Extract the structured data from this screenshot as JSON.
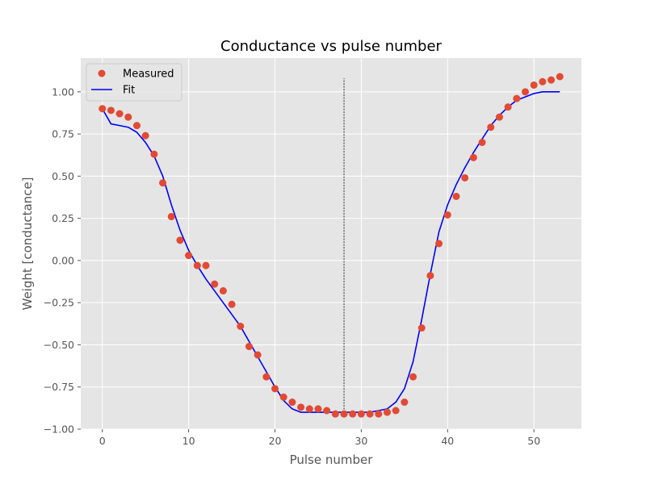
{
  "chart_data": {
    "type": "scatter",
    "title": "Conductance vs pulse number",
    "xlabel": "Pulse number",
    "ylabel": "Weight [conductance]",
    "xlim": [
      -2.5,
      55.5
    ],
    "ylim": [
      -1.0,
      1.2
    ],
    "xticks": [
      0,
      10,
      20,
      30,
      40,
      50
    ],
    "yticks": [
      -1.0,
      -0.75,
      -0.5,
      -0.25,
      0.0,
      0.25,
      0.5,
      0.75,
      1.0
    ],
    "xtick_labels": [
      "0",
      "10",
      "20",
      "30",
      "40",
      "50"
    ],
    "ytick_labels": [
      "−1.00",
      "−0.75",
      "−0.50",
      "−0.25",
      "0.00",
      "0.25",
      "0.50",
      "0.75",
      "1.00"
    ],
    "grid": true,
    "legend_position": "top-left",
    "background_color": "#e5e5e5",
    "vline": {
      "x": 28,
      "y_range": [
        -0.9,
        1.08
      ],
      "color": "#000000",
      "style": "dashed"
    },
    "series": [
      {
        "name": "Measured",
        "kind": "scatter",
        "color": "#e24a33",
        "x": [
          0,
          1,
          2,
          3,
          4,
          5,
          6,
          7,
          8,
          9,
          10,
          11,
          12,
          13,
          14,
          15,
          16,
          17,
          18,
          19,
          20,
          21,
          22,
          23,
          24,
          25,
          26,
          27,
          28,
          29,
          30,
          31,
          32,
          33,
          34,
          35,
          36,
          37,
          38,
          39,
          40,
          41,
          42,
          43,
          44,
          45,
          46,
          47,
          48,
          49,
          50,
          51,
          52,
          53
        ],
        "y": [
          0.9,
          0.89,
          0.87,
          0.85,
          0.8,
          0.74,
          0.63,
          0.46,
          0.26,
          0.12,
          0.03,
          -0.03,
          -0.03,
          -0.14,
          -0.18,
          -0.26,
          -0.39,
          -0.51,
          -0.56,
          -0.69,
          -0.76,
          -0.81,
          -0.84,
          -0.87,
          -0.88,
          -0.88,
          -0.89,
          -0.91,
          -0.91,
          -0.91,
          -0.91,
          -0.91,
          -0.91,
          -0.9,
          -0.89,
          -0.84,
          -0.69,
          -0.4,
          -0.09,
          0.1,
          0.27,
          0.38,
          0.49,
          0.61,
          0.7,
          0.79,
          0.85,
          0.91,
          0.96,
          1.0,
          1.04,
          1.06,
          1.07,
          1.09
        ]
      },
      {
        "name": "Fit",
        "kind": "line",
        "color": "#0000ff",
        "x": [
          0,
          1,
          2,
          3,
          4,
          5,
          6,
          7,
          8,
          9,
          10,
          11,
          12,
          13,
          14,
          15,
          16,
          17,
          18,
          19,
          20,
          21,
          22,
          23,
          24,
          25,
          26,
          27,
          28,
          29,
          30,
          31,
          32,
          33,
          34,
          35,
          36,
          37,
          38,
          39,
          40,
          41,
          42,
          43,
          44,
          45,
          46,
          47,
          48,
          49,
          50,
          51,
          52,
          53
        ],
        "y": [
          0.9,
          0.81,
          0.8,
          0.79,
          0.76,
          0.7,
          0.62,
          0.5,
          0.33,
          0.18,
          0.06,
          -0.03,
          -0.11,
          -0.18,
          -0.25,
          -0.32,
          -0.39,
          -0.48,
          -0.57,
          -0.66,
          -0.75,
          -0.83,
          -0.88,
          -0.9,
          -0.9,
          -0.9,
          -0.9,
          -0.9,
          -0.9,
          -0.9,
          -0.9,
          -0.9,
          -0.89,
          -0.88,
          -0.84,
          -0.76,
          -0.6,
          -0.35,
          -0.08,
          0.17,
          0.33,
          0.45,
          0.55,
          0.64,
          0.72,
          0.8,
          0.86,
          0.91,
          0.95,
          0.97,
          0.99,
          1.0,
          1.0,
          1.0
        ]
      }
    ]
  }
}
